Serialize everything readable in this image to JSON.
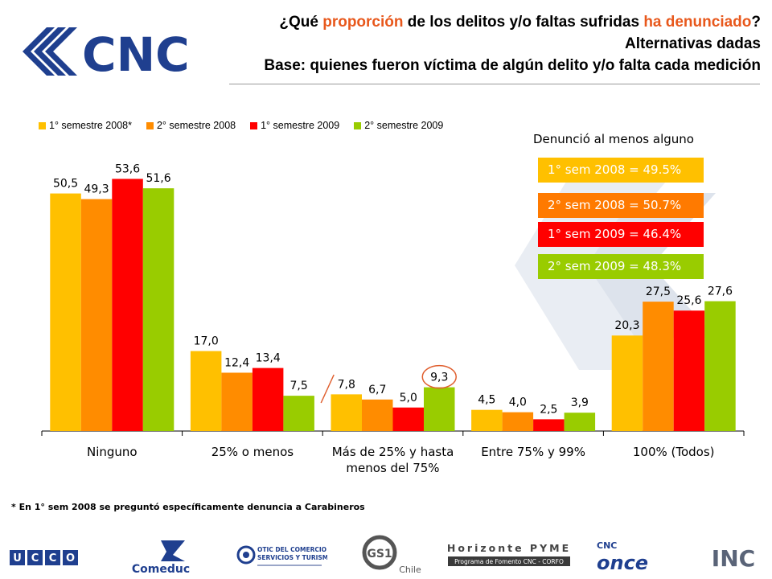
{
  "header": {
    "logo_text": "CNC",
    "title_line1_parts": [
      "¿Qué ",
      "proporción",
      " de los delitos y/o faltas sufridas ",
      "ha denunciado",
      "?"
    ],
    "title_line2": "Alternativas dadas",
    "title_line3": "Base: quienes fueron víctima de algún delito y/o falta cada medición"
  },
  "colors": {
    "s1": "#ffc000",
    "s2": "#ff8c00",
    "s3": "#ff0000",
    "s4": "#99cc00",
    "accent": "#e8581c",
    "circle": "#e06030"
  },
  "chart_data": {
    "type": "bar",
    "categories": [
      [
        "Ninguno"
      ],
      [
        "25% o menos"
      ],
      [
        "Más de 25% y hasta",
        "menos del 75%"
      ],
      [
        "Entre 75% y 99%"
      ],
      [
        "100% (Todos)"
      ]
    ],
    "series": [
      {
        "name": "1° semestre 2008*",
        "values": [
          50.5,
          17.0,
          7.8,
          4.5,
          20.3
        ],
        "labels": [
          "50,5",
          "17,0",
          "7,8",
          "4,5",
          "20,3"
        ]
      },
      {
        "name": "2° semestre 2008",
        "values": [
          49.3,
          12.4,
          6.7,
          4.0,
          27.5
        ],
        "labels": [
          "49,3",
          "12,4",
          "6,7",
          "4,0",
          "27,5"
        ]
      },
      {
        "name": "1° semestre 2009",
        "values": [
          53.6,
          13.4,
          5.0,
          2.5,
          25.6
        ],
        "labels": [
          "53,6",
          "13,4",
          "5,0",
          "2,5",
          "25,6"
        ]
      },
      {
        "name": "2° semestre 2009",
        "values": [
          51.6,
          7.5,
          9.3,
          3.9,
          27.6
        ],
        "labels": [
          "51,6",
          "7,5",
          "9,3",
          "3,9",
          "27,6"
        ]
      }
    ],
    "ylim": [
      0,
      60
    ],
    "grid": false,
    "legend": "top-left",
    "highlighted": {
      "series": 3,
      "category": 2
    }
  },
  "side_panel": {
    "title": "Denunció al menos alguno",
    "boxes": [
      "1° sem 2008 = 49.5%",
      "2° sem 2008 = 50.7%",
      "1° sem 2009 = 46.4%",
      "2° sem 2009 = 48.3%"
    ]
  },
  "footnote": "* En 1° sem 2008 se preguntó específicamente denuncia a Carabineros",
  "sponsors": {
    "ucco": "UCCO",
    "comeduc": "Comeduc",
    "otic_line1": "OTIC DEL COMERCIO",
    "otic_line2": "SERVICIOS Y TURISMO",
    "gs1": "GS1",
    "gs1_sub": "Chile",
    "horizonte": "Horizonte PYME",
    "horizonte_sub": "Programa de Fomento CNC - CORFO",
    "cnc_once_top": "CNC",
    "cnc_once": "once",
    "inc": "INC"
  }
}
